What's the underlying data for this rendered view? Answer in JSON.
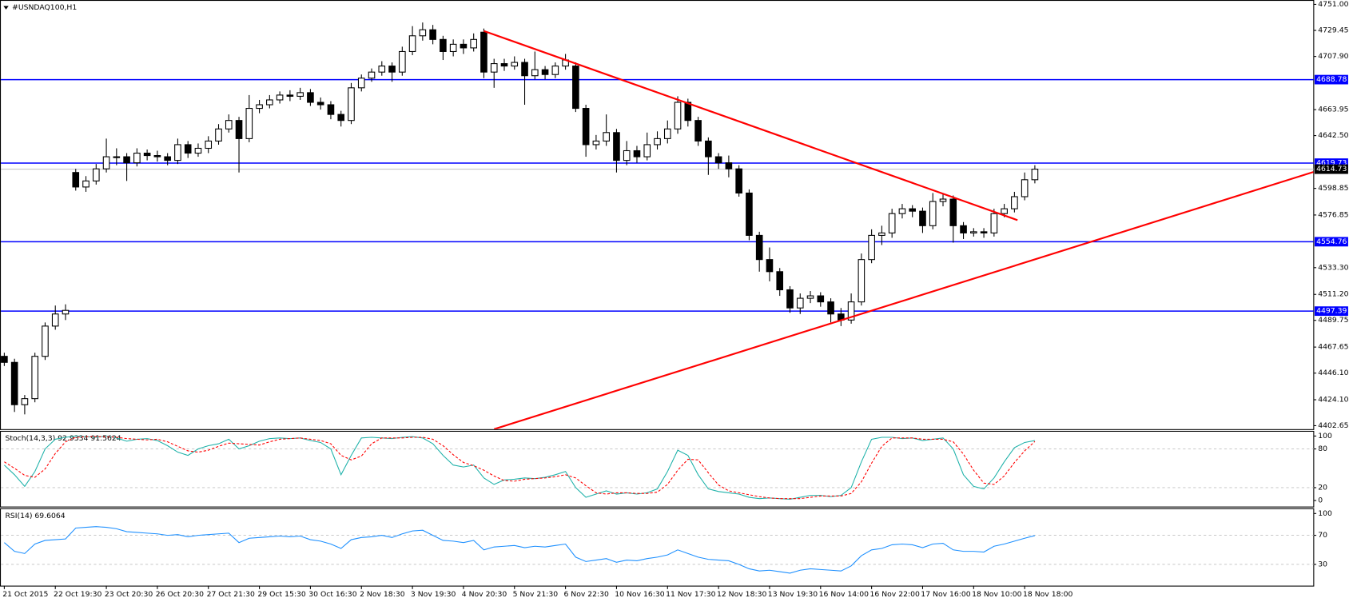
{
  "chart_data": [
    {
      "type": "candlestick",
      "title": "#USNDAQ100,H1",
      "categories": [
        "21 Oct 2015",
        null,
        null,
        null,
        null,
        "22 Oct 19:30",
        null,
        null,
        null,
        null,
        "23 Oct 20:30",
        null,
        null,
        null,
        null,
        "26 Oct 20:30",
        null,
        null,
        null,
        null,
        "27 Oct 21:30",
        null,
        null,
        null,
        null,
        "29 Oct 15:30",
        null,
        null,
        null,
        null,
        "30 Oct 16:30",
        null,
        null,
        null,
        null,
        "2 Nov 18:30",
        null,
        null,
        null,
        null,
        "3 Nov 19:30",
        null,
        null,
        null,
        null,
        "4 Nov 20:30",
        null,
        null,
        null,
        null,
        "5 Nov 21:30",
        null,
        null,
        null,
        null,
        "6 Nov 22:30",
        null,
        null,
        null,
        null,
        "10 Nov 16:30",
        null,
        null,
        null,
        null,
        "11 Nov 17:30",
        null,
        null,
        null,
        null,
        "12 Nov 18:30",
        null,
        null,
        null,
        null,
        "13 Nov 19:30",
        null,
        null,
        null,
        null,
        "16 Nov 14:00",
        null,
        null,
        null,
        null,
        "16 Nov 22:00",
        null,
        null,
        null,
        null,
        "17 Nov 16:00",
        null,
        null,
        null,
        null,
        "18 Nov 10:00",
        null,
        null,
        null,
        null,
        "18 Nov 18:00",
        null
      ],
      "open": [
        4460,
        4455,
        4420,
        4425,
        4460,
        4485,
        4495,
        4612,
        4600,
        4605,
        4615,
        4625,
        4625,
        4620,
        4628,
        4626,
        4625,
        4622,
        4635,
        4628,
        4632,
        4638,
        4648,
        4655,
        4640,
        4665,
        4668,
        4672,
        4676,
        4675,
        4678,
        4670,
        4668,
        4660,
        4655,
        4682,
        4690,
        4695,
        4700,
        4695,
        4712,
        4725,
        4730,
        4722,
        4712,
        4718,
        4715,
        4728,
        4695,
        4702,
        4700,
        4703,
        4692,
        4697,
        4693,
        4700,
        4700,
        4665,
        4635,
        4638,
        4645,
        4622,
        4630,
        4625,
        4635,
        4640,
        4648,
        4670,
        4655,
        4638,
        4625,
        4620,
        4615,
        4595,
        4560,
        4540,
        4530,
        4515,
        4500,
        4508,
        4510,
        4505,
        4495,
        4490,
        4505,
        4540,
        4560,
        4562,
        4578,
        4582,
        4580,
        4568,
        4588,
        4590,
        4568,
        4562,
        4563,
        4562,
        4578,
        4582,
        4592,
        4606
      ],
      "high": [
        4463,
        4458,
        4428,
        4463,
        4488,
        4502,
        4503,
        4615,
        4609,
        4619,
        4640,
        4632,
        4628,
        4632,
        4631,
        4630,
        4628,
        4640,
        4638,
        4636,
        4642,
        4652,
        4660,
        4658,
        4676,
        4672,
        4676,
        4679,
        4680,
        4682,
        4681,
        4674,
        4671,
        4663,
        4686,
        4693,
        4698,
        4704,
        4703,
        4716,
        4733,
        4736,
        4734,
        4725,
        4722,
        4722,
        4727,
        4731,
        4706,
        4706,
        4708,
        4706,
        4712,
        4700,
        4703,
        4710,
        4703,
        4668,
        4643,
        4660,
        4648,
        4638,
        4634,
        4645,
        4646,
        4655,
        4675,
        4673,
        4658,
        4641,
        4628,
        4626,
        4618,
        4598,
        4563,
        4550,
        4533,
        4518,
        4512,
        4514,
        4513,
        4508,
        4500,
        4512,
        4545,
        4565,
        4568,
        4582,
        4586,
        4585,
        4583,
        4595,
        4595,
        4593,
        4571,
        4566,
        4566,
        4582,
        4586,
        4596,
        4612,
        4618
      ],
      "low": [
        4452,
        4414,
        4412,
        4422,
        4457,
        4482,
        4490,
        4597,
        4596,
        4602,
        4612,
        4618,
        4605,
        4617,
        4622,
        4621,
        4618,
        4619,
        4624,
        4625,
        4628,
        4635,
        4645,
        4612,
        4637,
        4661,
        4665,
        4669,
        4671,
        4672,
        4667,
        4664,
        4656,
        4650,
        4652,
        4679,
        4687,
        4692,
        4687,
        4692,
        4709,
        4721,
        4718,
        4705,
        4708,
        4710,
        4712,
        4690,
        4682,
        4696,
        4697,
        4668,
        4689,
        4689,
        4690,
        4697,
        4662,
        4625,
        4631,
        4634,
        4612,
        4618,
        4620,
        4622,
        4631,
        4636,
        4644,
        4650,
        4634,
        4610,
        4615,
        4608,
        4592,
        4556,
        4530,
        4522,
        4510,
        4496,
        4495,
        4504,
        4501,
        4488,
        4485,
        4487,
        4502,
        4537,
        4552,
        4558,
        4574,
        4575,
        4562,
        4565,
        4584,
        4554,
        4557,
        4559,
        4558,
        4559,
        4575,
        4579,
        4589,
        4603
      ],
      "close": [
        4455,
        4420,
        4425,
        4460,
        4485,
        4495,
        4498,
        4600,
        4605,
        4615,
        4625,
        4625,
        4620,
        4628,
        4626,
        4625,
        4622,
        4635,
        4628,
        4632,
        4638,
        4648,
        4655,
        4640,
        4665,
        4668,
        4672,
        4676,
        4675,
        4678,
        4670,
        4668,
        4660,
        4655,
        4682,
        4690,
        4695,
        4700,
        4695,
        4712,
        4725,
        4730,
        4722,
        4712,
        4718,
        4715,
        4722,
        4695,
        4702,
        4700,
        4703,
        4692,
        4697,
        4693,
        4700,
        4705,
        4665,
        4635,
        4638,
        4645,
        4622,
        4630,
        4625,
        4635,
        4640,
        4648,
        4670,
        4655,
        4638,
        4625,
        4620,
        4615,
        4595,
        4560,
        4540,
        4530,
        4515,
        4500,
        4508,
        4510,
        4505,
        4495,
        4490,
        4505,
        4540,
        4560,
        4562,
        4578,
        4582,
        4580,
        4568,
        4588,
        4590,
        4568,
        4562,
        4563,
        4562,
        4578,
        4582,
        4592,
        4606,
        4614.73
      ],
      "up_color": "#ffffff",
      "down_color": "#000000",
      "edge_color": "#000000",
      "ylim": [
        4399.8,
        4754.6
      ],
      "yticks": [
        {
          "value": 4751,
          "label": "4751.00"
        },
        {
          "value": 4729.45,
          "label": "4729.45"
        },
        {
          "value": 4707.9,
          "label": "4707.90"
        },
        {
          "value": 4663.95,
          "label": "4663.95"
        },
        {
          "value": 4642.5,
          "label": "4642.50"
        },
        {
          "value": 4598.85,
          "label": "4598.85"
        },
        {
          "value": 4576.85,
          "label": "4576.85"
        },
        {
          "value": 4533.3,
          "label": "4533.30"
        },
        {
          "value": 4511.2,
          "label": "4511.20"
        },
        {
          "value": 4489.75,
          "label": "4489.75"
        },
        {
          "value": 4467.65,
          "label": "4467.65"
        },
        {
          "value": 4446.1,
          "label": "4446.10"
        },
        {
          "value": 4424.1,
          "label": "4424.10"
        },
        {
          "value": 4402.65,
          "label": "4402.65"
        }
      ],
      "levels": [
        4688.78,
        4619.73,
        4554.76,
        4497.39
      ],
      "level_color": "#0000ff",
      "level_labels": true,
      "last_price": 4614.73,
      "last_price_color": "#c0c0c0",
      "trendlines": [
        {
          "from": [
            47,
            4729
          ],
          "to": [
            99.3,
            4572.6
          ]
        },
        {
          "from": [
            48,
            4399.8
          ],
          "to": [
            128.3,
            4612.4
          ]
        }
      ],
      "trendline_color": "#ff0000"
    },
    {
      "type": "line",
      "title": "Stoch(14,3,3) 92.9334 91.5624",
      "series": [
        {
          "name": "%K",
          "color": "#20b2aa",
          "dash": false,
          "values": [
            55,
            40,
            22,
            45,
            80,
            95,
            98,
            100,
            99,
            98,
            100,
            97,
            92,
            95,
            96,
            93,
            85,
            75,
            70,
            80,
            85,
            88,
            95,
            80,
            85,
            92,
            96,
            97,
            96,
            97,
            93,
            90,
            80,
            40,
            70,
            97,
            98,
            97,
            96,
            98,
            99,
            97,
            88,
            70,
            55,
            52,
            55,
            35,
            25,
            32,
            33,
            35,
            34,
            36,
            40,
            45,
            20,
            5,
            10,
            15,
            10,
            12,
            10,
            12,
            18,
            45,
            78,
            70,
            40,
            18,
            14,
            12,
            10,
            5,
            3,
            4,
            3,
            2,
            5,
            8,
            8,
            6,
            8,
            20,
            60,
            95,
            98,
            98,
            96,
            97,
            93,
            95,
            97,
            80,
            40,
            22,
            18,
            35,
            60,
            82,
            90,
            92.9334
          ]
        },
        {
          "name": "%D",
          "color": "#ff0000",
          "dash": true,
          "values": [
            60,
            50,
            39,
            36,
            49,
            73,
            91,
            98,
            99,
            99,
            99,
            98,
            96,
            95,
            94,
            95,
            91,
            84,
            77,
            75,
            78,
            84,
            89,
            88,
            87,
            86,
            91,
            95,
            96,
            97,
            95,
            93,
            88,
            70,
            63,
            69,
            88,
            97,
            97,
            97,
            98,
            98,
            95,
            85,
            71,
            59,
            54,
            47,
            38,
            31,
            30,
            33,
            34,
            35,
            37,
            40,
            35,
            23,
            12,
            10,
            12,
            12,
            11,
            11,
            13,
            25,
            47,
            64,
            63,
            43,
            24,
            15,
            12,
            9,
            6,
            4,
            3,
            3,
            3,
            5,
            7,
            7,
            7,
            11,
            29,
            58,
            84,
            97,
            97,
            97,
            95,
            95,
            95,
            91,
            72,
            47,
            27,
            25,
            38,
            59,
            77,
            91.5624
          ]
        }
      ],
      "ylim": [
        -9.3,
        108
      ],
      "yticks": [
        100,
        80,
        20,
        0
      ],
      "levels": [
        80,
        20
      ],
      "level_color": "#c0c0c0",
      "level_dash": true
    },
    {
      "type": "line",
      "title": "RSI(14) 69.6064",
      "series": [
        {
          "name": "RSI",
          "color": "#1e90ff",
          "dash": false,
          "values": [
            60,
            48,
            45,
            58,
            63,
            64,
            65,
            80,
            81,
            82,
            81,
            79,
            75,
            74,
            73,
            72,
            70,
            71,
            68,
            70,
            71,
            72,
            73,
            60,
            66,
            67,
            68,
            69,
            68,
            69,
            64,
            62,
            58,
            52,
            64,
            67,
            68,
            70,
            67,
            72,
            76,
            77,
            70,
            63,
            62,
            60,
            63,
            50,
            54,
            55,
            56,
            53,
            55,
            54,
            56,
            58,
            40,
            34,
            36,
            38,
            33,
            36,
            35,
            38,
            40,
            43,
            50,
            45,
            40,
            37,
            36,
            35,
            30,
            24,
            21,
            22,
            20,
            18,
            22,
            24,
            23,
            22,
            21,
            28,
            42,
            50,
            52,
            57,
            58,
            57,
            53,
            58,
            59,
            50,
            48,
            48,
            47,
            55,
            58,
            62,
            66,
            69.6064
          ]
        }
      ],
      "ylim": [
        0.8,
        107.2
      ],
      "yticks": [
        100,
        70,
        30
      ],
      "levels": [
        70,
        30
      ],
      "level_color": "#c0c0c0",
      "level_dash": true
    }
  ]
}
